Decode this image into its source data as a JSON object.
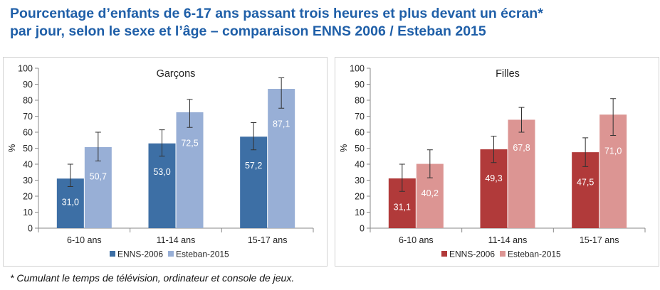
{
  "title": {
    "line1": "Pourcentage d’enfants de 6-17 ans passant trois heures et plus devant un écran*",
    "line2": "par jour, selon le sexe et l’âge – comparaison ENNS 2006 / Esteban 2015"
  },
  "footnote": "* Cumulant le temps de télévision, ordinateur et console de jeux.",
  "chart_data": [
    {
      "type": "bar",
      "title": "Garçons",
      "ylabel": "%",
      "ylim": [
        0,
        100
      ],
      "yticks": [
        0,
        10,
        20,
        30,
        40,
        50,
        60,
        70,
        80,
        90,
        100
      ],
      "grid": false,
      "legend": "bottom",
      "categories": [
        "6-10 ans",
        "11-14 ans",
        "15-17 ans"
      ],
      "series": [
        {
          "name": "ENNS-2006",
          "color": "#3d6fa5",
          "values": [
            31.0,
            53.0,
            57.2
          ],
          "labels": [
            "31,0",
            "53,0",
            "57,2"
          ],
          "error_low": [
            26,
            45,
            49
          ],
          "error_high": [
            40,
            61.5,
            66
          ]
        },
        {
          "name": "Esteban-2015",
          "color": "#98afd6",
          "values": [
            50.7,
            72.5,
            87.1
          ],
          "labels": [
            "50,7",
            "72,5",
            "87,1"
          ],
          "error_low": [
            42,
            63,
            75
          ],
          "error_high": [
            60,
            80.5,
            94
          ]
        }
      ]
    },
    {
      "type": "bar",
      "title": "Filles",
      "ylabel": "%",
      "ylim": [
        0,
        100
      ],
      "yticks": [
        0,
        10,
        20,
        30,
        40,
        50,
        60,
        70,
        80,
        90,
        100
      ],
      "grid": false,
      "legend": "bottom",
      "categories": [
        "6-10 ans",
        "11-14 ans",
        "15-17 ans"
      ],
      "series": [
        {
          "name": "ENNS-2006",
          "color": "#b13a3a",
          "values": [
            31.1,
            49.3,
            47.5
          ],
          "labels": [
            "31,1",
            "49,3",
            "47,5"
          ],
          "error_low": [
            23,
            41,
            38.5
          ],
          "error_high": [
            40,
            57.5,
            56.5
          ]
        },
        {
          "name": "Esteban-2015",
          "color": "#dc9593",
          "values": [
            40.2,
            67.8,
            71.0
          ],
          "labels": [
            "40,2",
            "67,8",
            "71,0"
          ],
          "error_low": [
            31.5,
            60,
            58
          ],
          "error_high": [
            49,
            75.5,
            81
          ]
        }
      ]
    }
  ]
}
